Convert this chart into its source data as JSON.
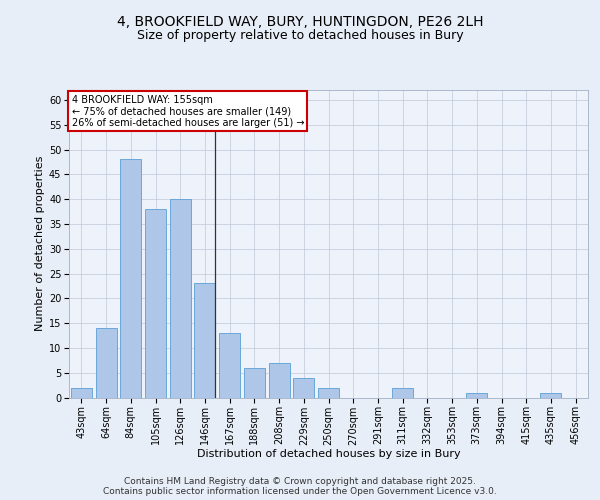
{
  "title_line1": "4, BROOKFIELD WAY, BURY, HUNTINGDON, PE26 2LH",
  "title_line2": "Size of property relative to detached houses in Bury",
  "xlabel": "Distribution of detached houses by size in Bury",
  "ylabel": "Number of detached properties",
  "categories": [
    "43sqm",
    "64sqm",
    "84sqm",
    "105sqm",
    "126sqm",
    "146sqm",
    "167sqm",
    "188sqm",
    "208sqm",
    "229sqm",
    "250sqm",
    "270sqm",
    "291sqm",
    "311sqm",
    "332sqm",
    "353sqm",
    "373sqm",
    "394sqm",
    "415sqm",
    "435sqm",
    "456sqm"
  ],
  "values": [
    2,
    14,
    48,
    38,
    40,
    23,
    13,
    6,
    7,
    4,
    2,
    0,
    0,
    2,
    0,
    0,
    1,
    0,
    0,
    1,
    0
  ],
  "bar_color": "#aec6e8",
  "bar_edge_color": "#5a9fd4",
  "highlight_index": 5,
  "highlight_line_color": "#333333",
  "ylim": [
    0,
    62
  ],
  "yticks": [
    0,
    5,
    10,
    15,
    20,
    25,
    30,
    35,
    40,
    45,
    50,
    55,
    60
  ],
  "annotation_text": "4 BROOKFIELD WAY: 155sqm\n← 75% of detached houses are smaller (149)\n26% of semi-detached houses are larger (51) →",
  "annotation_box_color": "#ffffff",
  "annotation_box_edge": "#cc0000",
  "background_color": "#e8eef8",
  "plot_bg_color": "#eef2fb",
  "footer_text": "Contains HM Land Registry data © Crown copyright and database right 2025.\nContains public sector information licensed under the Open Government Licence v3.0.",
  "title_fontsize": 10,
  "subtitle_fontsize": 9,
  "axis_label_fontsize": 8,
  "tick_fontsize": 7,
  "footer_fontsize": 6.5,
  "annotation_fontsize": 7
}
